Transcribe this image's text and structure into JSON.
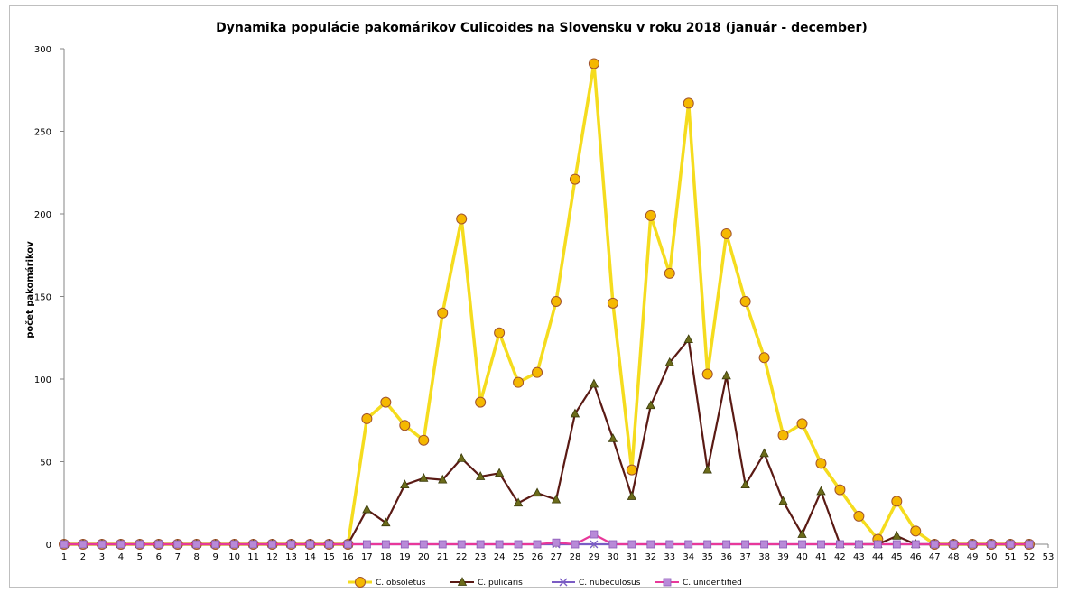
{
  "chart_data": {
    "type": "line",
    "title": "Dynamika populácie pakomárikov Culicoides na Slovensku v roku  2018 (január - december)",
    "xlabel": "",
    "ylabel": "počet pakomárikov",
    "x": [
      1,
      2,
      3,
      4,
      5,
      6,
      7,
      8,
      9,
      10,
      11,
      12,
      13,
      14,
      15,
      16,
      17,
      18,
      19,
      20,
      21,
      22,
      23,
      24,
      25,
      26,
      27,
      28,
      29,
      30,
      31,
      32,
      33,
      34,
      35,
      36,
      37,
      38,
      39,
      40,
      41,
      42,
      43,
      44,
      45,
      46,
      47,
      48,
      49,
      50,
      51,
      52
    ],
    "x_ticks": [
      "1",
      "2",
      "3",
      "4",
      "5",
      "6",
      "7",
      "8",
      "9",
      "10",
      "11",
      "12",
      "13",
      "14",
      "15",
      "16",
      "17",
      "18",
      "19",
      "20",
      "21",
      "22",
      "23",
      "24",
      "25",
      "26",
      "27",
      "28",
      "29",
      "30",
      "31",
      "32",
      "33",
      "34",
      "35",
      "36",
      "37",
      "38",
      "39",
      "40",
      "41",
      "42",
      "43",
      "44",
      "45",
      "46",
      "47",
      "48",
      "49",
      "50",
      "51",
      "52",
      "53"
    ],
    "xlim": [
      1,
      53
    ],
    "ylim": [
      0,
      300
    ],
    "y_ticks": [
      "0",
      "50",
      "100",
      "150",
      "200",
      "250",
      "300"
    ],
    "y_tick_values": [
      0,
      50,
      100,
      150,
      200,
      250,
      300
    ],
    "grid": false,
    "legend_position": "bottom",
    "series": [
      {
        "name": "C. obsoletus",
        "color": "#f5dc1e",
        "marker": "circle",
        "marker_fill": "#f5b800",
        "marker_stroke": "#a0522d",
        "values": [
          0,
          0,
          0,
          0,
          0,
          0,
          0,
          0,
          0,
          0,
          0,
          0,
          0,
          0,
          0,
          0,
          76,
          86,
          72,
          63,
          140,
          197,
          86,
          128,
          98,
          104,
          147,
          221,
          291,
          146,
          45,
          199,
          164,
          267,
          103,
          188,
          147,
          113,
          66,
          73,
          49,
          33,
          17,
          3,
          26,
          8,
          0,
          0,
          0,
          0,
          0,
          0
        ]
      },
      {
        "name": "C. pulicaris",
        "color": "#5a1a14",
        "marker": "triangle",
        "marker_fill": "#6b6b1a",
        "marker_stroke": "#3a3a0a",
        "values": [
          0,
          0,
          0,
          0,
          0,
          0,
          0,
          0,
          0,
          0,
          0,
          0,
          0,
          0,
          0,
          0,
          21,
          13,
          36,
          40,
          39,
          52,
          41,
          43,
          25,
          31,
          27,
          79,
          97,
          64,
          29,
          84,
          110,
          124,
          45,
          102,
          36,
          55,
          26,
          6,
          32,
          0,
          0,
          0,
          5,
          0,
          0,
          0,
          0,
          0,
          0,
          0
        ]
      },
      {
        "name": "C. nubeculosus",
        "color": "#7b5cc4",
        "marker": "x",
        "marker_fill": "#7b5cc4",
        "marker_stroke": "#7b5cc4",
        "values": [
          0,
          0,
          0,
          0,
          0,
          0,
          0,
          0,
          0,
          0,
          0,
          0,
          0,
          0,
          0,
          0,
          0,
          0,
          0,
          0,
          0,
          0,
          0,
          0,
          0,
          0,
          0,
          0,
          0,
          0,
          0,
          0,
          0,
          0,
          0,
          0,
          0,
          0,
          0,
          0,
          0,
          0,
          0,
          0,
          0,
          0,
          0,
          0,
          0,
          0,
          0,
          0
        ]
      },
      {
        "name": "C. unidentified",
        "color": "#e8389a",
        "marker": "square",
        "marker_fill": "#b88ad8",
        "marker_stroke": "#8a5ab8",
        "values": [
          0,
          0,
          0,
          0,
          0,
          0,
          0,
          0,
          0,
          0,
          0,
          0,
          0,
          0,
          0,
          0,
          0,
          0,
          0,
          0,
          0,
          0,
          0,
          0,
          0,
          0,
          1,
          0,
          6,
          0,
          0,
          0,
          0,
          0,
          0,
          0,
          0,
          0,
          0,
          0,
          0,
          0,
          0,
          0,
          0,
          0,
          0,
          0,
          0,
          0,
          0,
          0
        ]
      }
    ]
  }
}
